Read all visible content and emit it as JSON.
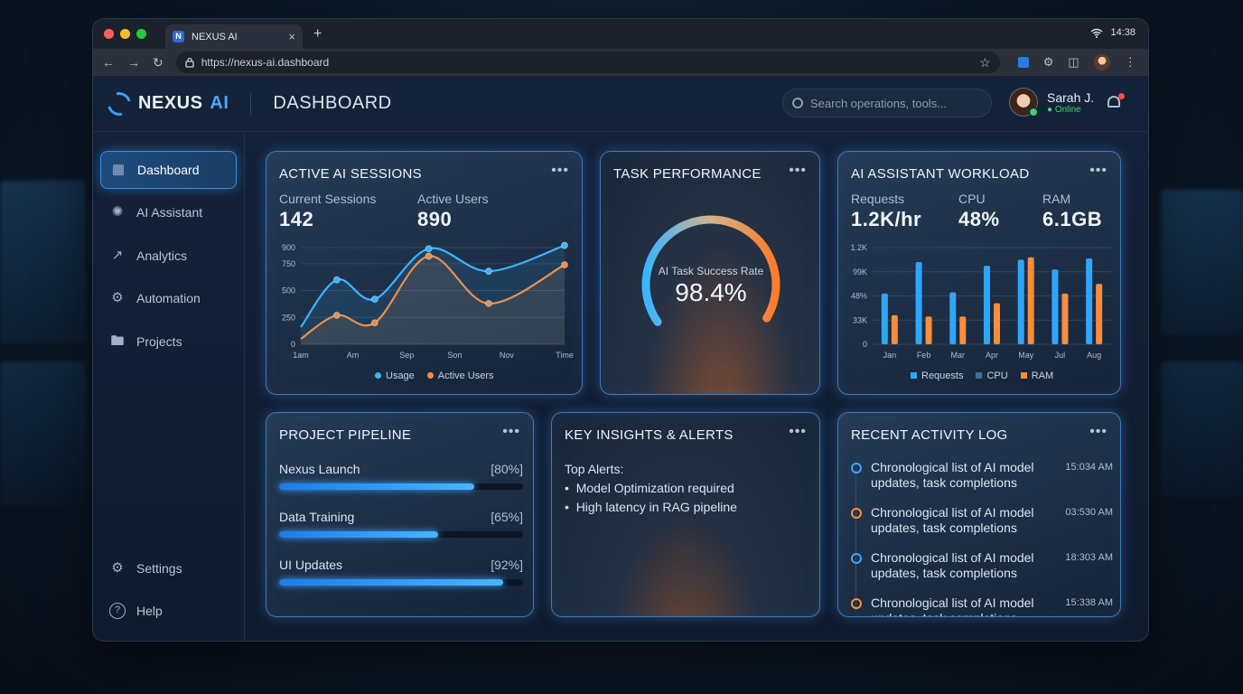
{
  "browser": {
    "tab_title": "NEXUS AI",
    "tab_favicon": "N",
    "new_tab": "+",
    "close_tab": "×",
    "url": "https://nexus-ai.dashboard",
    "clock": "14:38"
  },
  "app": {
    "brand_name": "NEXUS",
    "brand_suffix": "AI",
    "page_title": "DASHBOARD",
    "search_placeholder": "Search operations, tools...",
    "user": {
      "name": "Sarah J.",
      "status": "Online"
    }
  },
  "sidebar": {
    "items": [
      {
        "label": "Dashboard",
        "icon": "grid-icon",
        "active": true
      },
      {
        "label": "AI Assistant",
        "icon": "gear-brain-icon",
        "active": false
      },
      {
        "label": "Analytics",
        "icon": "line-chart-icon",
        "active": false
      },
      {
        "label": "Automation",
        "icon": "cog-icon",
        "active": false
      },
      {
        "label": "Projects",
        "icon": "folder-icon",
        "active": false
      }
    ],
    "bottom_items": [
      {
        "label": "Settings",
        "icon": "settings-icon"
      },
      {
        "label": "Help",
        "icon": "help-icon"
      }
    ]
  },
  "cards": {
    "sessions": {
      "title": "ACTIVE AI SESSIONS",
      "more": "•••",
      "stat1_label": "Current Sessions",
      "stat1_value": "142",
      "stat2_label": "Active Users",
      "stat2_value": "890"
    },
    "task": {
      "title": "TASK PERFORMANCE",
      "more": "•••",
      "gauge_label": "AI Task Success Rate",
      "gauge_value": "98.4%",
      "gauge_fraction": 0.984
    },
    "workload": {
      "title": "AI ASSISTANT WORKLOAD",
      "more": "•••",
      "stats": [
        {
          "label": "Requests",
          "value": "1.2K/hr"
        },
        {
          "label": "CPU",
          "value": "48%"
        },
        {
          "label": "RAM",
          "value": "6.1GB"
        }
      ]
    },
    "pipeline": {
      "title": "PROJECT PIPELINE",
      "more": "•••",
      "items": [
        {
          "label": "Nexus Launch",
          "pct_text": "[80%]",
          "progress": 0.8
        },
        {
          "label": "Data Training",
          "pct_text": "[65%]",
          "progress": 0.65
        },
        {
          "label": "UI Updates",
          "pct_text": "[92%]",
          "progress": 0.92
        }
      ]
    },
    "insights": {
      "title": "KEY INSIGHTS & ALERTS",
      "more": "•••",
      "heading": "Top Alerts:",
      "alerts": [
        "Model Optimization required",
        "High latency in RAG pipeline"
      ]
    },
    "activity": {
      "title": "RECENT ACTIVITY LOG",
      "more": "•••",
      "items": [
        {
          "text": "Chronological list of AI model updates, task completions",
          "time": "15:034 AM",
          "color": "#3aa8ff"
        },
        {
          "text": "Chronological list of AI model updates, task completions",
          "time": "03:530 AM",
          "color": "#ff8c3a"
        },
        {
          "text": "Chronological list of AI model updates, task completions",
          "time": "18:303 AM",
          "color": "#3aa8ff"
        },
        {
          "text": "Chronological list of AI model updates, task completions",
          "time": "15:338 AM",
          "color": "#ff8c3a"
        }
      ]
    }
  },
  "chart_data": [
    {
      "type": "line",
      "x": [
        "1am",
        "Am",
        "Sep",
        "Son",
        "Nov",
        "Time"
      ],
      "x_numeric": [
        0,
        1,
        2,
        3,
        4,
        5
      ],
      "ylim": [
        0,
        900
      ],
      "yticks": [
        "0",
        "250",
        "500",
        "750",
        "900"
      ],
      "series": [
        {
          "name": "Usage",
          "color": "#3ab4ff",
          "points": [
            [
              0,
              160
            ],
            [
              0.9,
              600
            ],
            [
              1.85,
              420
            ],
            [
              3.2,
              890
            ],
            [
              4.7,
              680
            ],
            [
              6.6,
              920
            ]
          ]
        },
        {
          "name": "Active Users",
          "color": "#ff8c3a",
          "points": [
            [
              0,
              50
            ],
            [
              0.9,
              270
            ],
            [
              1.85,
              200
            ],
            [
              3.2,
              820
            ],
            [
              4.7,
              380
            ],
            [
              6.6,
              740
            ]
          ]
        }
      ]
    },
    {
      "type": "bar",
      "categories": [
        "Jan",
        "Feb",
        "Mar",
        "Apr",
        "May",
        "Jul",
        "Aug"
      ],
      "yticks": [
        "0",
        "33K",
        "48%",
        "99K",
        "1.2K"
      ],
      "ylim": [
        0,
        4
      ],
      "series": [
        {
          "name": "Requests",
          "color": "#2ea6ff",
          "values": [
            2.1,
            3.4,
            2.15,
            3.25,
            3.5,
            3.1,
            3.55
          ]
        },
        {
          "name": "CPU",
          "color": "#4a6e9a",
          "values": [
            0,
            0,
            0,
            0,
            0,
            0,
            0
          ]
        },
        {
          "name": "RAM",
          "color": "#ff8c3a",
          "values": [
            1.2,
            1.15,
            1.15,
            1.7,
            3.6,
            2.1,
            2.5
          ]
        }
      ],
      "bar_values_ram_may_note": null
    }
  ]
}
